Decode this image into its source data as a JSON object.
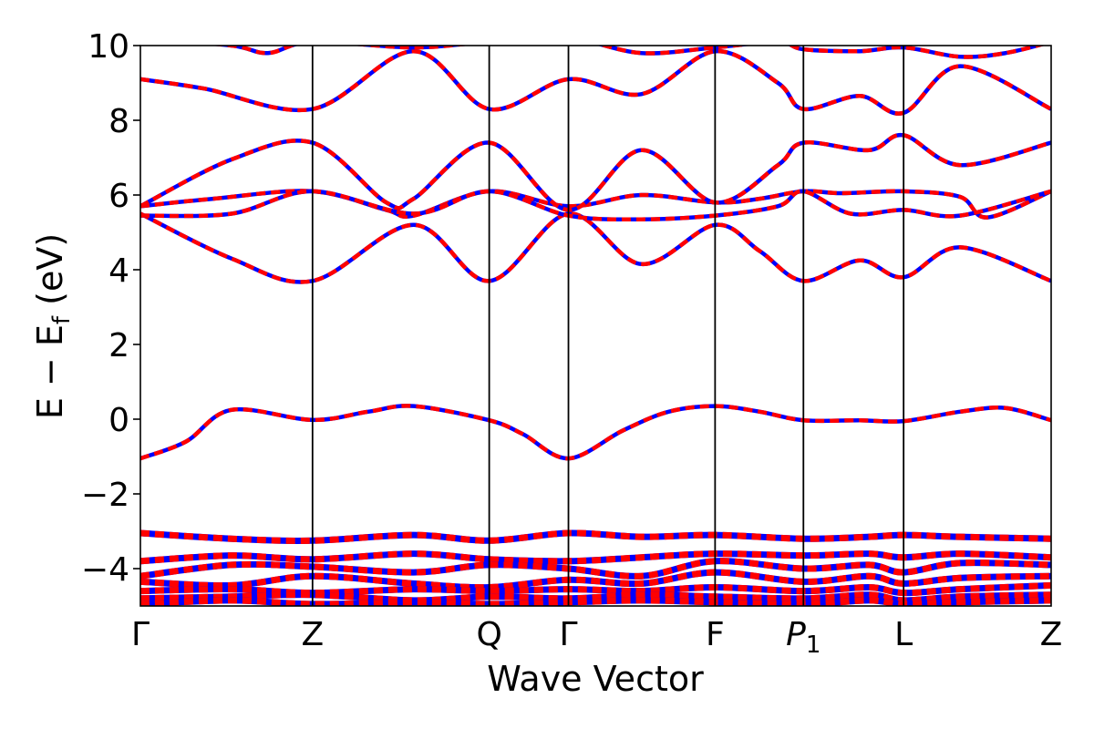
{
  "chart_data": {
    "type": "line",
    "title": "",
    "xlabel": "Wave Vector",
    "ylabel": {
      "main": "E − E",
      "sub": "f",
      "unit": "(eV)"
    },
    "ylim": [
      -5,
      10
    ],
    "yticks": [
      "10",
      "8",
      "6",
      "4",
      "2",
      "0",
      "−2",
      "−4"
    ],
    "ytick_values": [
      10,
      8,
      6,
      4,
      2,
      0,
      -2,
      -4
    ],
    "xlim": [
      0,
      1
    ],
    "kpoints": [
      {
        "label": "Γ",
        "x": 0.0
      },
      {
        "label": "Z",
        "x": 0.189
      },
      {
        "label": "Q",
        "x": 0.383
      },
      {
        "label": "Γ",
        "x": 0.47
      },
      {
        "label": "F",
        "x": 0.631
      },
      {
        "label": "P",
        "sub": "1",
        "x": 0.728
      },
      {
        "label": "L",
        "x": 0.838
      },
      {
        "label": "Z",
        "x": 1.0
      }
    ],
    "grid": false,
    "colors": {
      "band_primary": "#ff0000",
      "band_secondary": "#0000ff",
      "kline": "#000000"
    },
    "series": [
      {
        "x": [
          0.0,
          0.05,
          0.1,
          0.189,
          0.25,
          0.3,
          0.383,
          0.42,
          0.47,
          0.53,
          0.58,
          0.631,
          0.68,
          0.728,
          0.79,
          0.838,
          0.9,
          0.95,
          1.0
        ],
        "values": [
          -1.05,
          -0.6,
          0.25,
          -0.02,
          0.2,
          0.35,
          -0.03,
          -0.4,
          -1.05,
          -0.3,
          0.2,
          0.35,
          0.2,
          -0.03,
          -0.03,
          -0.05,
          0.2,
          0.3,
          -0.03
        ]
      },
      {
        "x": [
          0.0,
          0.1,
          0.189,
          0.3,
          0.383,
          0.47,
          0.55,
          0.631,
          0.68,
          0.728,
          0.79,
          0.838,
          0.9,
          1.0
        ],
        "values": [
          5.5,
          4.3,
          3.7,
          5.2,
          3.7,
          5.5,
          4.15,
          5.2,
          4.5,
          3.7,
          4.25,
          3.8,
          4.6,
          3.7
        ]
      },
      {
        "x": [
          0.0,
          0.08,
          0.189,
          0.27,
          0.3,
          0.383,
          0.47,
          0.55,
          0.631,
          0.68,
          0.728,
          0.77,
          0.838,
          0.9,
          0.93,
          1.0
        ],
        "values": [
          5.7,
          5.9,
          6.1,
          5.6,
          5.45,
          6.1,
          5.7,
          6.0,
          5.8,
          5.9,
          6.1,
          6.05,
          6.1,
          5.95,
          5.4,
          6.1
        ]
      },
      {
        "x": [
          0.0,
          0.1,
          0.189,
          0.3,
          0.383,
          0.47,
          0.55,
          0.631,
          0.7,
          0.728,
          0.78,
          0.838,
          0.9,
          1.0
        ],
        "values": [
          5.45,
          5.5,
          6.1,
          5.5,
          6.1,
          5.45,
          5.35,
          5.45,
          5.7,
          6.1,
          5.5,
          5.6,
          5.45,
          6.1
        ]
      },
      {
        "x": [
          0.0,
          0.1,
          0.189,
          0.27,
          0.3,
          0.383,
          0.47,
          0.55,
          0.631,
          0.7,
          0.728,
          0.8,
          0.838,
          0.9,
          1.0
        ],
        "values": [
          5.7,
          6.95,
          7.4,
          5.8,
          5.9,
          7.4,
          5.6,
          7.2,
          5.8,
          6.8,
          7.4,
          7.2,
          7.6,
          6.8,
          7.4
        ]
      },
      {
        "x": [
          0.0,
          0.07,
          0.189,
          0.3,
          0.383,
          0.47,
          0.55,
          0.631,
          0.7,
          0.728,
          0.79,
          0.838,
          0.9,
          1.0
        ],
        "values": [
          9.1,
          8.85,
          8.3,
          9.85,
          8.3,
          9.1,
          8.7,
          9.85,
          9.0,
          8.3,
          8.65,
          8.2,
          9.45,
          8.3
        ]
      },
      {
        "x": [
          0.0,
          0.1,
          0.14,
          0.189,
          0.3,
          0.383,
          0.47,
          0.55,
          0.631,
          0.7,
          0.728,
          0.79,
          0.838,
          0.9,
          0.95,
          1.0
        ],
        "values": [
          10.2,
          10.0,
          9.8,
          10.1,
          9.95,
          10.1,
          10.2,
          9.8,
          9.95,
          10.1,
          9.9,
          9.85,
          9.95,
          9.7,
          9.8,
          10.1
        ]
      },
      {
        "x": [
          0.0,
          0.1,
          0.189,
          0.3,
          0.383,
          0.47,
          0.55,
          0.631,
          0.728,
          0.8,
          0.838,
          0.9,
          1.0
        ],
        "values": [
          -3.05,
          -3.2,
          -3.25,
          -3.1,
          -3.25,
          -3.05,
          -3.15,
          -3.1,
          -3.2,
          -3.15,
          -3.1,
          -3.15,
          -3.2
        ]
      },
      {
        "x": [
          0.0,
          0.1,
          0.189,
          0.3,
          0.383,
          0.47,
          0.55,
          0.631,
          0.728,
          0.8,
          0.838,
          0.9,
          1.0
        ],
        "values": [
          -3.8,
          -3.65,
          -3.75,
          -3.6,
          -3.75,
          -3.8,
          -3.7,
          -3.6,
          -3.65,
          -3.6,
          -3.7,
          -3.6,
          -3.7
        ]
      },
      {
        "x": [
          0.0,
          0.1,
          0.189,
          0.3,
          0.383,
          0.47,
          0.55,
          0.631,
          0.728,
          0.8,
          0.838,
          0.9,
          1.0
        ],
        "values": [
          -4.2,
          -3.9,
          -3.95,
          -4.1,
          -3.9,
          -4.0,
          -4.2,
          -3.8,
          -4.0,
          -3.9,
          -4.1,
          -3.85,
          -3.9
        ]
      },
      {
        "x": [
          0.0,
          0.1,
          0.189,
          0.3,
          0.383,
          0.47,
          0.55,
          0.631,
          0.728,
          0.8,
          0.838,
          0.9,
          1.0
        ],
        "values": [
          -4.35,
          -4.45,
          -4.2,
          -4.4,
          -4.5,
          -4.3,
          -4.4,
          -4.1,
          -4.35,
          -4.2,
          -4.4,
          -4.25,
          -4.2
        ]
      },
      {
        "x": [
          0.0,
          0.1,
          0.189,
          0.3,
          0.383,
          0.47,
          0.55,
          0.631,
          0.728,
          0.8,
          0.838,
          0.9,
          1.0
        ],
        "values": [
          -4.6,
          -4.55,
          -4.65,
          -4.55,
          -4.6,
          -4.55,
          -4.6,
          -4.5,
          -4.6,
          -4.5,
          -4.65,
          -4.55,
          -4.45
        ]
      },
      {
        "x": [
          0.0,
          0.1,
          0.189,
          0.3,
          0.383,
          0.47,
          0.55,
          0.631,
          0.728,
          0.8,
          0.838,
          0.9,
          1.0
        ],
        "values": [
          -4.8,
          -4.75,
          -4.7,
          -4.85,
          -4.75,
          -4.8,
          -4.7,
          -4.75,
          -4.8,
          -4.7,
          -4.85,
          -4.75,
          -4.7
        ]
      },
      {
        "x": [
          0.0,
          0.1,
          0.189,
          0.3,
          0.383,
          0.47,
          0.55,
          0.631,
          0.728,
          0.8,
          0.838,
          0.9,
          1.0
        ],
        "values": [
          -4.95,
          -4.85,
          -4.95,
          -4.9,
          -4.95,
          -4.9,
          -4.85,
          -4.9,
          -4.95,
          -4.85,
          -4.95,
          -4.9,
          -4.85
        ]
      }
    ]
  }
}
